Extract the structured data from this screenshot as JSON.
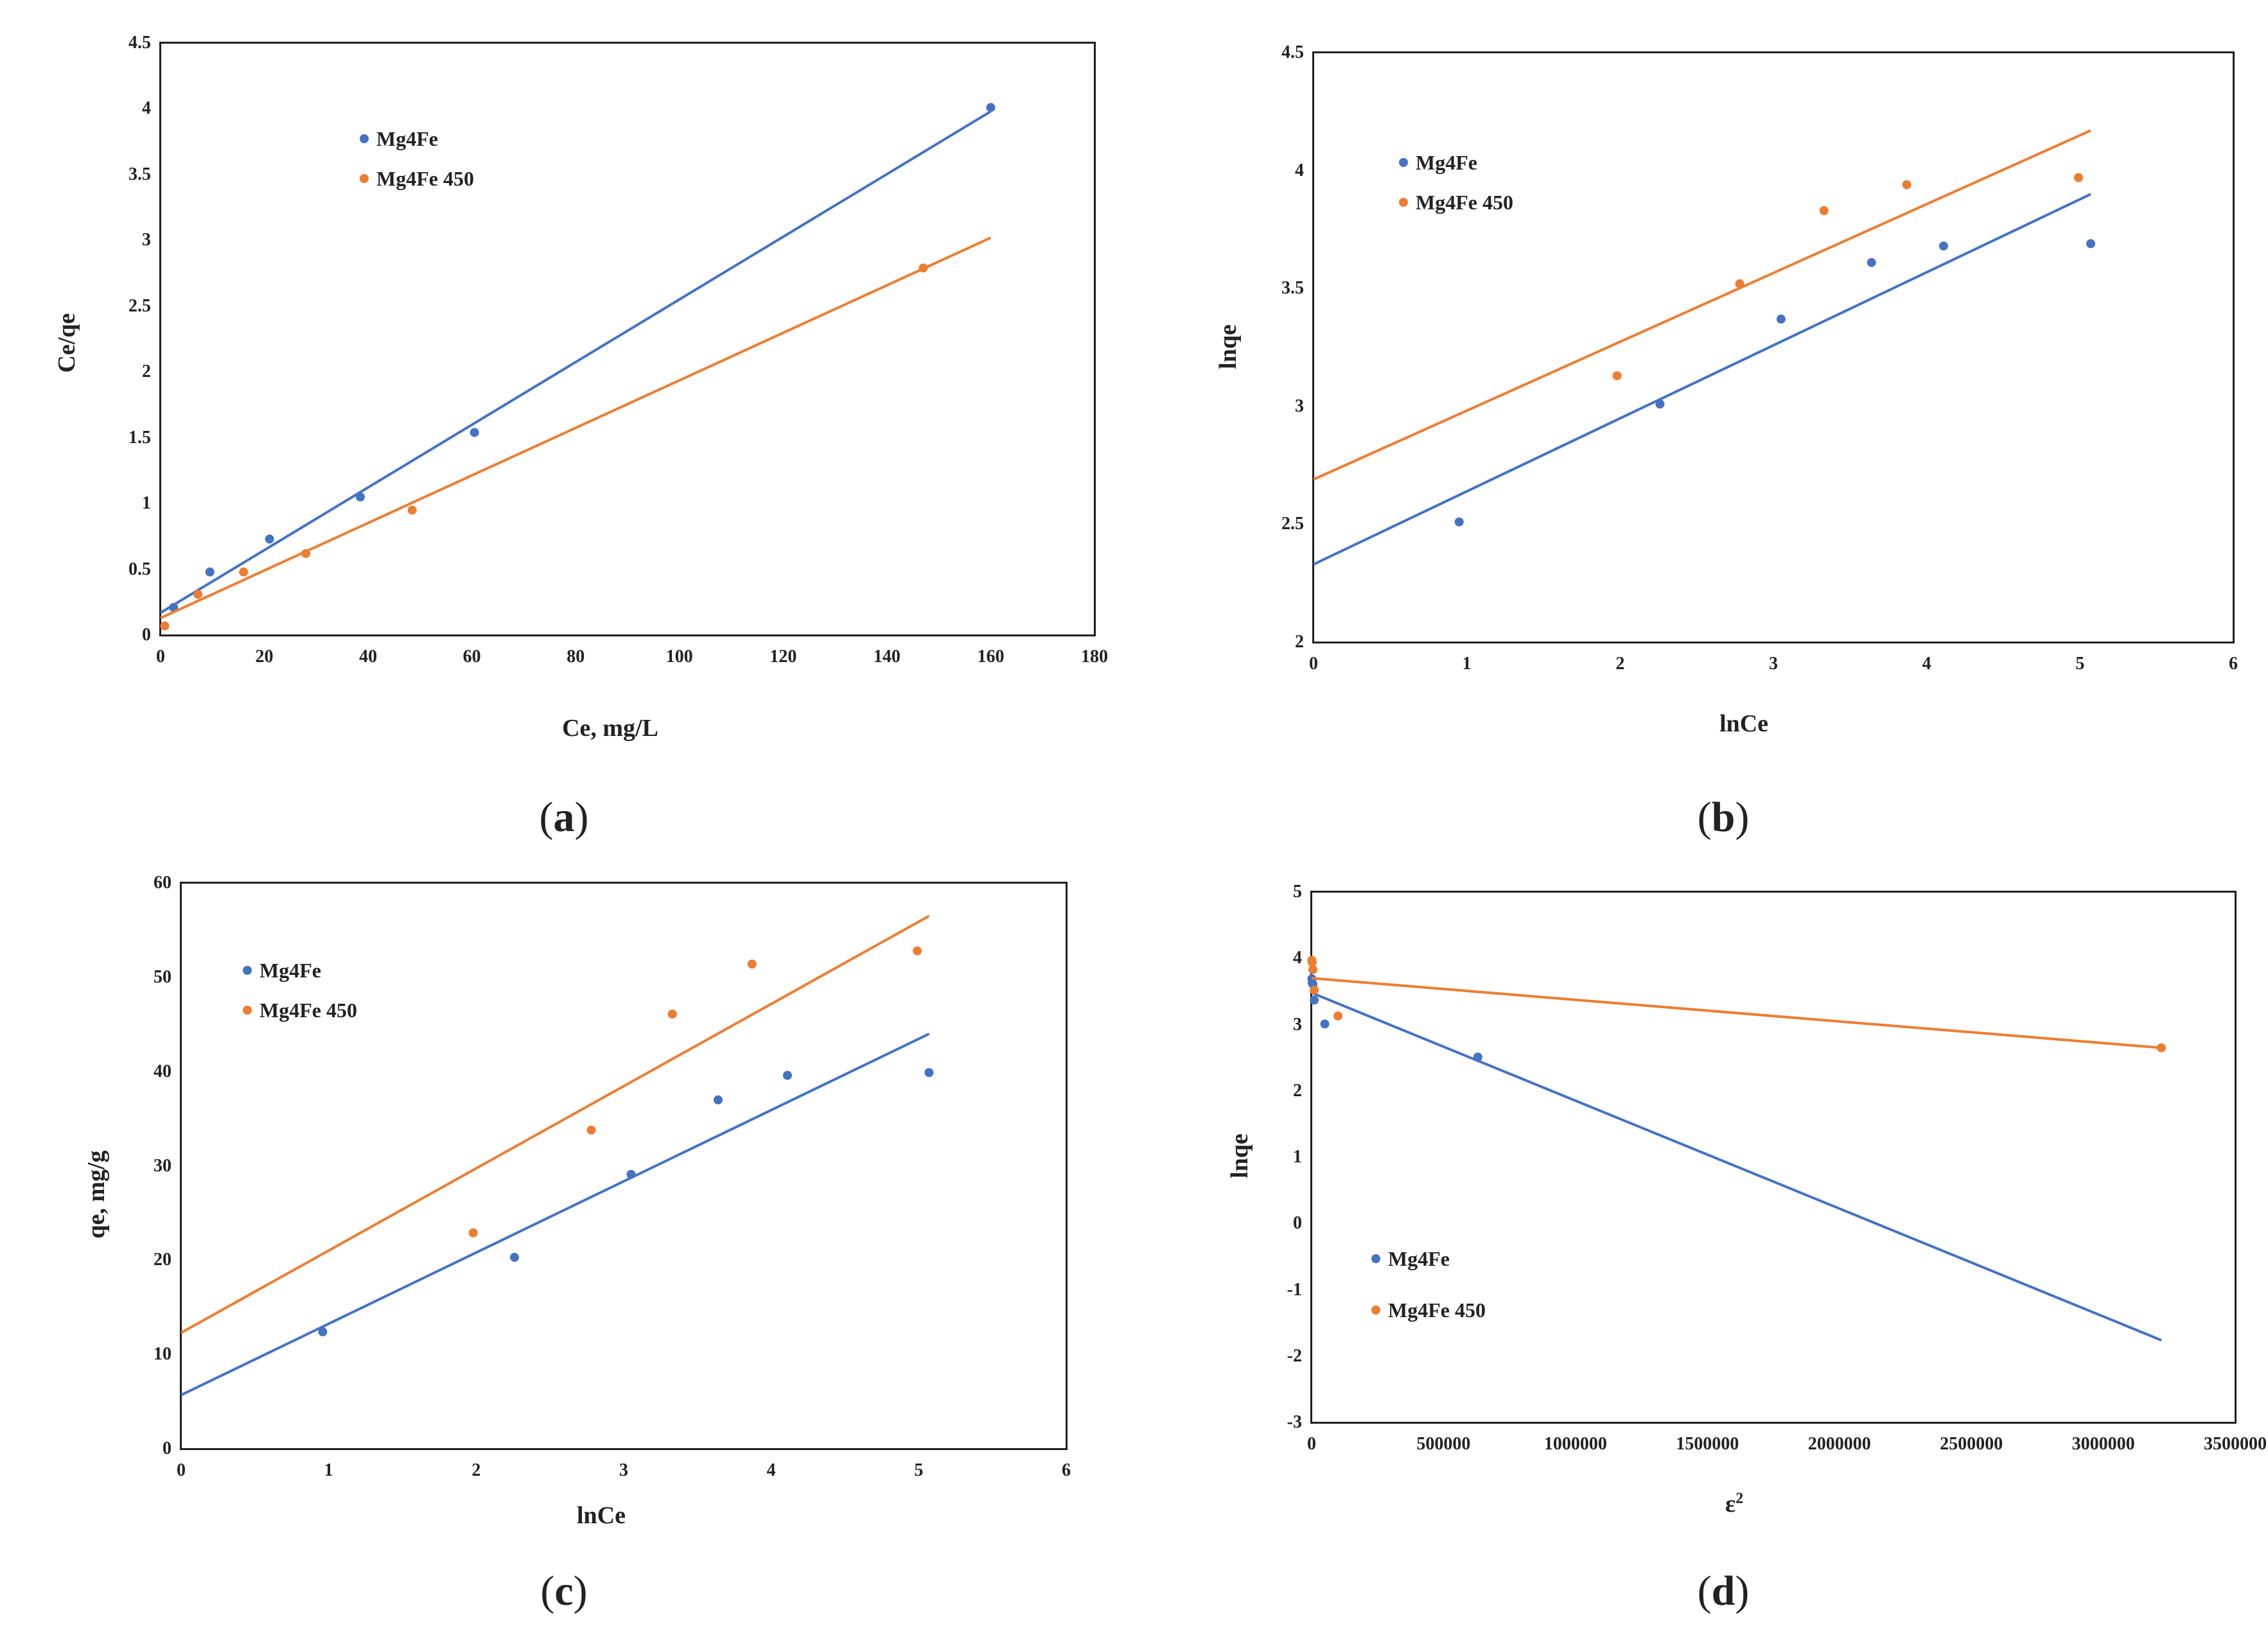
{
  "colors": {
    "Mg4Fe": "#4472C4",
    "Mg4Fe 450": "#ED7D31"
  },
  "chart_data": [
    {
      "id": "a",
      "type": "scatter",
      "caption_letter": "a",
      "xlabel": "Ce, mg/L",
      "ylabel": "Ce/qe",
      "xlim": [
        0,
        180
      ],
      "ylim": [
        0,
        4.5
      ],
      "xticks": [
        "0",
        "20",
        "40",
        "60",
        "80",
        "100",
        "120",
        "140",
        "160",
        "180"
      ],
      "yticks": [
        "0",
        "0.5",
        "1",
        "1.5",
        "2",
        "2.5",
        "3",
        "3.5",
        "4",
        "4.5"
      ],
      "legend": [
        "Mg4Fe",
        "Mg4Fe 450"
      ],
      "series": [
        {
          "name": "Mg4Fe",
          "points": [
            [
              2.5,
              0.21
            ],
            [
              9.5,
              0.48
            ],
            [
              21,
              0.73
            ],
            [
              38.5,
              1.05
            ],
            [
              60.5,
              1.54
            ],
            [
              160,
              4.01
            ]
          ],
          "fit_line": [
            [
              0,
              0.17
            ],
            [
              160,
              3.98
            ]
          ]
        },
        {
          "name": "Mg4Fe 450",
          "points": [
            [
              0.8,
              0.07
            ],
            [
              7.2,
              0.31
            ],
            [
              16,
              0.48
            ],
            [
              28,
              0.62
            ],
            [
              48.5,
              0.95
            ],
            [
              147,
              2.79
            ]
          ],
          "fit_line": [
            [
              0,
              0.13
            ],
            [
              160,
              3.02
            ]
          ]
        }
      ]
    },
    {
      "id": "b",
      "type": "scatter",
      "caption_letter": "b",
      "xlabel": "lnCe",
      "ylabel": "lnqe",
      "xlim": [
        0,
        6
      ],
      "ylim": [
        2,
        4.5
      ],
      "xticks": [
        "0",
        "1",
        "2",
        "3",
        "4",
        "5",
        "6"
      ],
      "yticks": [
        "2",
        "2.5",
        "3",
        "3.5",
        "4",
        "4.5"
      ],
      "legend": [
        "Mg4Fe",
        "Mg4Fe 450"
      ],
      "series": [
        {
          "name": "Mg4Fe",
          "points": [
            [
              0.95,
              2.51
            ],
            [
              2.26,
              3.01
            ],
            [
              3.05,
              3.37
            ],
            [
              3.64,
              3.61
            ],
            [
              4.11,
              3.68
            ],
            [
              5.07,
              3.69
            ]
          ],
          "fit_line": [
            [
              0,
              2.33
            ],
            [
              5.07,
              3.9
            ]
          ]
        },
        {
          "name": "Mg4Fe 450",
          "points": [
            [
              1.98,
              3.13
            ],
            [
              2.78,
              3.52
            ],
            [
              3.33,
              3.83
            ],
            [
              3.87,
              3.94
            ],
            [
              4.99,
              3.97
            ]
          ],
          "fit_line": [
            [
              0,
              2.69
            ],
            [
              5.07,
              4.17
            ]
          ]
        }
      ]
    },
    {
      "id": "c",
      "type": "scatter",
      "caption_letter": "c",
      "xlabel": "lnCe",
      "ylabel": "qe, mg/g",
      "xlim": [
        0,
        6
      ],
      "ylim": [
        0,
        60
      ],
      "xticks": [
        "0",
        "1",
        "2",
        "3",
        "4",
        "5",
        "6"
      ],
      "yticks": [
        "0",
        "10",
        "20",
        "30",
        "40",
        "50",
        "60"
      ],
      "legend": [
        "Mg4Fe",
        "Mg4Fe 450"
      ],
      "series": [
        {
          "name": "Mg4Fe",
          "points": [
            [
              0.96,
              12.4
            ],
            [
              2.26,
              20.3
            ],
            [
              3.05,
              29.1
            ],
            [
              3.64,
              37.0
            ],
            [
              4.11,
              39.6
            ],
            [
              5.07,
              39.9
            ]
          ],
          "fit_line": [
            [
              0,
              5.7
            ],
            [
              5.07,
              44.0
            ]
          ]
        },
        {
          "name": "Mg4Fe 450",
          "points": [
            [
              1.98,
              22.9
            ],
            [
              2.78,
              33.8
            ],
            [
              3.33,
              46.1
            ],
            [
              3.87,
              51.4
            ],
            [
              4.99,
              52.8
            ]
          ],
          "fit_line": [
            [
              0,
              12.3
            ],
            [
              5.07,
              56.5
            ]
          ]
        }
      ]
    },
    {
      "id": "d",
      "type": "scatter",
      "caption_letter": "d",
      "xlabel": "ε",
      "xlabel_sup": "2",
      "ylabel": "lnqe",
      "xlim": [
        0,
        3500000
      ],
      "ylim": [
        -3,
        5
      ],
      "xticks": [
        "0",
        "500000",
        "1000000",
        "1500000",
        "2000000",
        "2500000",
        "3000000",
        "3500000"
      ],
      "yticks": [
        "-3",
        "-2",
        "-1",
        "0",
        "1",
        "2",
        "3",
        "4",
        "5"
      ],
      "legend": [
        "Mg4Fe",
        "Mg4Fe 450"
      ],
      "series": [
        {
          "name": "Mg4Fe",
          "points": [
            [
              1000,
              3.69
            ],
            [
              2500,
              3.63
            ],
            [
              5000,
              3.61
            ],
            [
              10000,
              3.37
            ],
            [
              50000,
              3.01
            ],
            [
              630000,
              2.51
            ]
          ],
          "fit_line": [
            [
              0,
              3.48
            ],
            [
              3220000,
              -1.76
            ]
          ]
        },
        {
          "name": "Mg4Fe 450",
          "points": [
            [
              1000,
              3.97
            ],
            [
              2500,
              3.94
            ],
            [
              5000,
              3.83
            ],
            [
              10000,
              3.52
            ],
            [
              100000,
              3.13
            ],
            [
              3220000,
              2.65
            ]
          ],
          "fit_line": [
            [
              0,
              3.7
            ],
            [
              3220000,
              2.65
            ]
          ]
        }
      ]
    }
  ]
}
